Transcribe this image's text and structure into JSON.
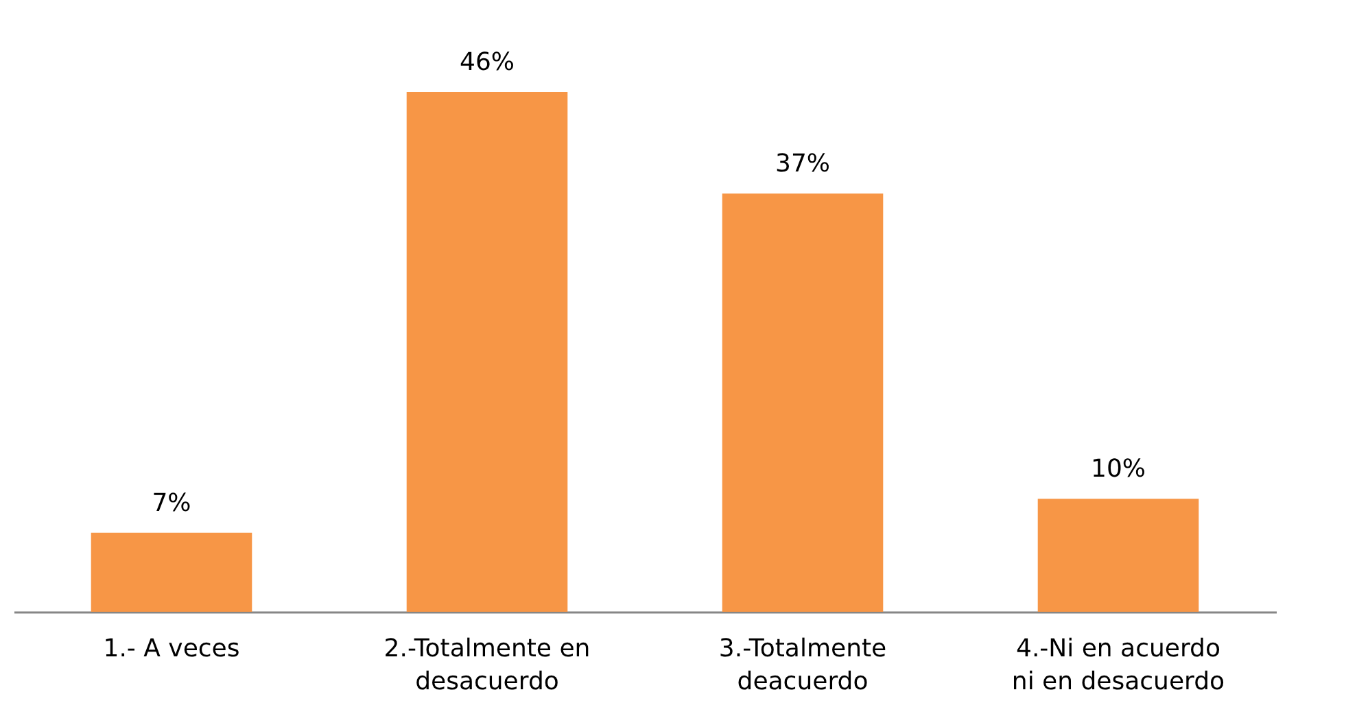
{
  "chart_data": {
    "type": "bar",
    "categories": [
      "1.- A veces",
      "2.-Totalmente en desacuerdo",
      "3.-Totalmente deacuerdo",
      "4.-Ni en acuerdo ni en desacuerdo"
    ],
    "values": [
      7,
      46,
      37,
      10
    ],
    "color": "#f79646",
    "value_labels": [
      "7%",
      "46%",
      "37%",
      "10%"
    ]
  }
}
